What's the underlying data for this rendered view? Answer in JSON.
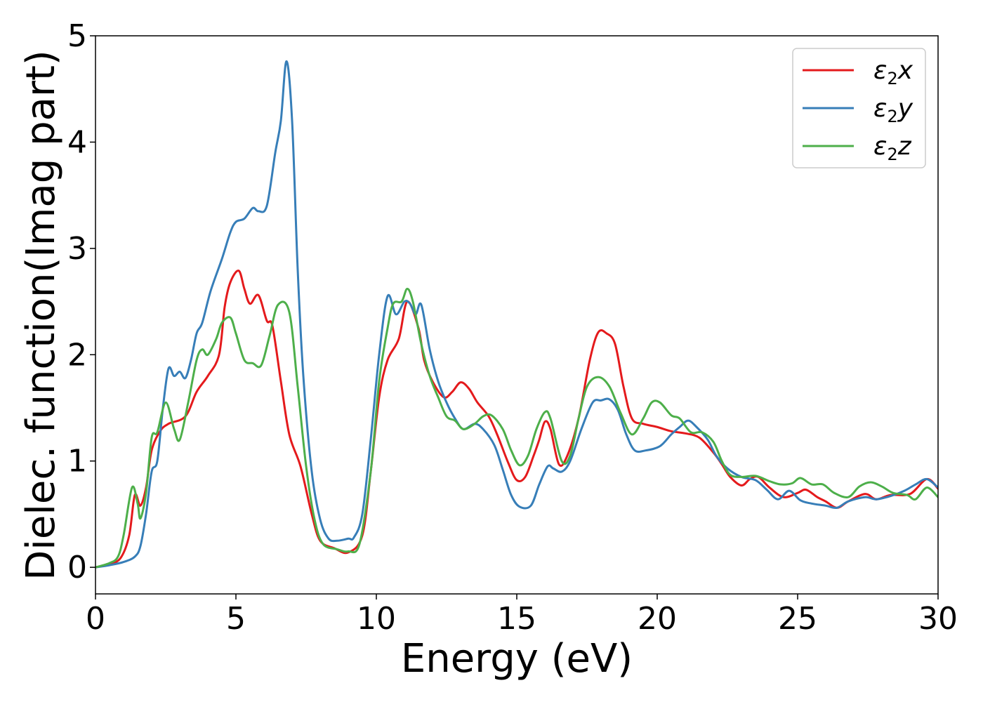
{
  "chart_data": {
    "type": "line",
    "xlabel": "Energy (eV)",
    "ylabel": "Dielec. function(Imag part)",
    "xlim": [
      0,
      30
    ],
    "ylim": [
      -0.25,
      5.0
    ],
    "xticks": [
      "0",
      "5",
      "10",
      "15",
      "20",
      "25",
      "30"
    ],
    "yticks": [
      "0",
      "1",
      "2",
      "3",
      "4",
      "5"
    ],
    "grid": false,
    "legend_position": "top-right",
    "series": [
      {
        "name": "ε2x",
        "legend": {
          "base": "ε",
          "sub": "2",
          "var": "x"
        },
        "color": "#e41a1c",
        "points": [
          [
            0,
            0
          ],
          [
            0.5,
            0.03
          ],
          [
            0.9,
            0.09
          ],
          [
            1.2,
            0.3
          ],
          [
            1.4,
            0.68
          ],
          [
            1.6,
            0.58
          ],
          [
            1.8,
            0.75
          ],
          [
            2.0,
            1.1
          ],
          [
            2.3,
            1.28
          ],
          [
            2.6,
            1.35
          ],
          [
            3.2,
            1.42
          ],
          [
            3.6,
            1.65
          ],
          [
            4.0,
            1.8
          ],
          [
            4.4,
            2.0
          ],
          [
            4.6,
            2.45
          ],
          [
            4.8,
            2.68
          ],
          [
            5.1,
            2.79
          ],
          [
            5.3,
            2.62
          ],
          [
            5.5,
            2.48
          ],
          [
            5.8,
            2.56
          ],
          [
            6.1,
            2.32
          ],
          [
            6.3,
            2.27
          ],
          [
            6.6,
            1.75
          ],
          [
            6.9,
            1.25
          ],
          [
            7.3,
            0.95
          ],
          [
            7.7,
            0.5
          ],
          [
            8.0,
            0.25
          ],
          [
            8.5,
            0.18
          ],
          [
            9.0,
            0.14
          ],
          [
            9.5,
            0.3
          ],
          [
            9.8,
            0.9
          ],
          [
            10.1,
            1.6
          ],
          [
            10.4,
            1.95
          ],
          [
            10.8,
            2.15
          ],
          [
            11.1,
            2.5
          ],
          [
            11.5,
            2.25
          ],
          [
            11.7,
            1.95
          ],
          [
            12.0,
            1.75
          ],
          [
            12.4,
            1.6
          ],
          [
            12.7,
            1.65
          ],
          [
            13.0,
            1.74
          ],
          [
            13.3,
            1.68
          ],
          [
            13.6,
            1.55
          ],
          [
            14.0,
            1.42
          ],
          [
            14.3,
            1.25
          ],
          [
            14.7,
            0.98
          ],
          [
            15.0,
            0.82
          ],
          [
            15.3,
            0.85
          ],
          [
            15.6,
            1.05
          ],
          [
            15.8,
            1.2
          ],
          [
            16.0,
            1.37
          ],
          [
            16.2,
            1.3
          ],
          [
            16.5,
            0.97
          ],
          [
            16.8,
            1.05
          ],
          [
            17.2,
            1.4
          ],
          [
            17.6,
            1.95
          ],
          [
            17.9,
            2.21
          ],
          [
            18.2,
            2.2
          ],
          [
            18.5,
            2.1
          ],
          [
            18.8,
            1.7
          ],
          [
            19.1,
            1.4
          ],
          [
            19.5,
            1.35
          ],
          [
            20.0,
            1.32
          ],
          [
            20.5,
            1.28
          ],
          [
            21.0,
            1.26
          ],
          [
            21.5,
            1.22
          ],
          [
            22.0,
            1.08
          ],
          [
            22.3,
            0.97
          ],
          [
            22.6,
            0.85
          ],
          [
            23.0,
            0.77
          ],
          [
            23.3,
            0.83
          ],
          [
            23.6,
            0.85
          ],
          [
            24.0,
            0.75
          ],
          [
            24.5,
            0.66
          ],
          [
            25.0,
            0.7
          ],
          [
            25.3,
            0.73
          ],
          [
            25.7,
            0.66
          ],
          [
            26.0,
            0.62
          ],
          [
            26.4,
            0.56
          ],
          [
            26.8,
            0.62
          ],
          [
            27.4,
            0.69
          ],
          [
            27.8,
            0.64
          ],
          [
            28.3,
            0.68
          ],
          [
            29.0,
            0.69
          ],
          [
            29.6,
            0.83
          ],
          [
            30.0,
            0.74
          ]
        ]
      },
      {
        "name": "ε2y",
        "legend": {
          "base": "ε",
          "sub": "2",
          "var": "y"
        },
        "color": "#377eb8",
        "points": [
          [
            0,
            0
          ],
          [
            0.5,
            0.02
          ],
          [
            1.0,
            0.05
          ],
          [
            1.4,
            0.1
          ],
          [
            1.6,
            0.2
          ],
          [
            1.8,
            0.5
          ],
          [
            2.0,
            0.9
          ],
          [
            2.2,
            1.0
          ],
          [
            2.4,
            1.5
          ],
          [
            2.6,
            1.87
          ],
          [
            2.8,
            1.8
          ],
          [
            3.0,
            1.84
          ],
          [
            3.2,
            1.78
          ],
          [
            3.4,
            1.95
          ],
          [
            3.6,
            2.2
          ],
          [
            3.8,
            2.3
          ],
          [
            4.1,
            2.6
          ],
          [
            4.5,
            2.9
          ],
          [
            4.8,
            3.15
          ],
          [
            5.0,
            3.25
          ],
          [
            5.3,
            3.28
          ],
          [
            5.6,
            3.38
          ],
          [
            5.8,
            3.35
          ],
          [
            6.1,
            3.4
          ],
          [
            6.4,
            3.9
          ],
          [
            6.6,
            4.2
          ],
          [
            6.8,
            4.76
          ],
          [
            7.0,
            4.2
          ],
          [
            7.2,
            2.8
          ],
          [
            7.4,
            1.8
          ],
          [
            7.7,
            0.9
          ],
          [
            8.0,
            0.45
          ],
          [
            8.3,
            0.27
          ],
          [
            8.6,
            0.25
          ],
          [
            9.0,
            0.27
          ],
          [
            9.2,
            0.28
          ],
          [
            9.5,
            0.5
          ],
          [
            9.8,
            1.2
          ],
          [
            10.1,
            2.0
          ],
          [
            10.4,
            2.55
          ],
          [
            10.7,
            2.38
          ],
          [
            11.0,
            2.5
          ],
          [
            11.2,
            2.48
          ],
          [
            11.4,
            2.38
          ],
          [
            11.6,
            2.47
          ],
          [
            11.9,
            2.05
          ],
          [
            12.2,
            1.75
          ],
          [
            12.5,
            1.55
          ],
          [
            12.8,
            1.4
          ],
          [
            13.1,
            1.3
          ],
          [
            13.5,
            1.35
          ],
          [
            13.8,
            1.3
          ],
          [
            14.2,
            1.15
          ],
          [
            14.5,
            0.92
          ],
          [
            14.8,
            0.68
          ],
          [
            15.1,
            0.57
          ],
          [
            15.5,
            0.58
          ],
          [
            15.8,
            0.78
          ],
          [
            16.1,
            0.95
          ],
          [
            16.3,
            0.93
          ],
          [
            16.6,
            0.9
          ],
          [
            16.9,
            1.0
          ],
          [
            17.3,
            1.3
          ],
          [
            17.7,
            1.55
          ],
          [
            18.0,
            1.57
          ],
          [
            18.3,
            1.58
          ],
          [
            18.6,
            1.48
          ],
          [
            18.9,
            1.25
          ],
          [
            19.2,
            1.1
          ],
          [
            19.6,
            1.1
          ],
          [
            20.1,
            1.14
          ],
          [
            20.5,
            1.25
          ],
          [
            20.8,
            1.32
          ],
          [
            21.1,
            1.38
          ],
          [
            21.4,
            1.32
          ],
          [
            21.8,
            1.2
          ],
          [
            22.1,
            1.05
          ],
          [
            22.5,
            0.93
          ],
          [
            23.0,
            0.85
          ],
          [
            23.5,
            0.82
          ],
          [
            23.9,
            0.73
          ],
          [
            24.3,
            0.64
          ],
          [
            24.7,
            0.72
          ],
          [
            25.1,
            0.63
          ],
          [
            25.5,
            0.6
          ],
          [
            26.0,
            0.58
          ],
          [
            26.4,
            0.56
          ],
          [
            26.8,
            0.62
          ],
          [
            27.4,
            0.66
          ],
          [
            27.8,
            0.64
          ],
          [
            28.3,
            0.67
          ],
          [
            28.8,
            0.72
          ],
          [
            29.2,
            0.78
          ],
          [
            29.6,
            0.83
          ],
          [
            30.0,
            0.75
          ]
        ]
      },
      {
        "name": "ε2z",
        "legend": {
          "base": "ε",
          "sub": "2",
          "var": "z"
        },
        "color": "#4daf4a",
        "points": [
          [
            0,
            0
          ],
          [
            0.5,
            0.04
          ],
          [
            0.8,
            0.1
          ],
          [
            1.0,
            0.3
          ],
          [
            1.3,
            0.75
          ],
          [
            1.5,
            0.6
          ],
          [
            1.6,
            0.46
          ],
          [
            1.8,
            0.7
          ],
          [
            2.0,
            1.22
          ],
          [
            2.2,
            1.27
          ],
          [
            2.5,
            1.55
          ],
          [
            2.8,
            1.3
          ],
          [
            3.0,
            1.2
          ],
          [
            3.3,
            1.55
          ],
          [
            3.6,
            1.95
          ],
          [
            3.8,
            2.05
          ],
          [
            4.0,
            2.0
          ],
          [
            4.3,
            2.15
          ],
          [
            4.5,
            2.3
          ],
          [
            4.8,
            2.35
          ],
          [
            5.0,
            2.2
          ],
          [
            5.3,
            1.95
          ],
          [
            5.6,
            1.92
          ],
          [
            5.9,
            1.9
          ],
          [
            6.2,
            2.18
          ],
          [
            6.5,
            2.47
          ],
          [
            6.9,
            2.4
          ],
          [
            7.2,
            1.7
          ],
          [
            7.5,
            0.95
          ],
          [
            7.8,
            0.45
          ],
          [
            8.1,
            0.22
          ],
          [
            8.6,
            0.17
          ],
          [
            9.0,
            0.15
          ],
          [
            9.4,
            0.22
          ],
          [
            9.8,
            0.9
          ],
          [
            10.1,
            1.75
          ],
          [
            10.4,
            2.25
          ],
          [
            10.6,
            2.48
          ],
          [
            10.9,
            2.5
          ],
          [
            11.1,
            2.62
          ],
          [
            11.3,
            2.5
          ],
          [
            11.6,
            2.1
          ],
          [
            11.9,
            1.8
          ],
          [
            12.2,
            1.6
          ],
          [
            12.5,
            1.42
          ],
          [
            12.8,
            1.38
          ],
          [
            13.1,
            1.3
          ],
          [
            13.5,
            1.35
          ],
          [
            13.8,
            1.42
          ],
          [
            14.1,
            1.43
          ],
          [
            14.5,
            1.3
          ],
          [
            14.8,
            1.1
          ],
          [
            15.1,
            0.96
          ],
          [
            15.4,
            1.05
          ],
          [
            15.7,
            1.3
          ],
          [
            16.0,
            1.46
          ],
          [
            16.2,
            1.4
          ],
          [
            16.6,
            1.0
          ],
          [
            16.9,
            1.05
          ],
          [
            17.2,
            1.4
          ],
          [
            17.5,
            1.7
          ],
          [
            17.9,
            1.79
          ],
          [
            18.3,
            1.7
          ],
          [
            18.7,
            1.45
          ],
          [
            19.1,
            1.25
          ],
          [
            19.5,
            1.4
          ],
          [
            19.8,
            1.55
          ],
          [
            20.1,
            1.55
          ],
          [
            20.5,
            1.43
          ],
          [
            20.8,
            1.4
          ],
          [
            21.2,
            1.27
          ],
          [
            21.6,
            1.27
          ],
          [
            22.0,
            1.18
          ],
          [
            22.3,
            1.0
          ],
          [
            22.6,
            0.87
          ],
          [
            23.0,
            0.85
          ],
          [
            23.5,
            0.86
          ],
          [
            24.0,
            0.81
          ],
          [
            24.4,
            0.78
          ],
          [
            24.8,
            0.79
          ],
          [
            25.1,
            0.84
          ],
          [
            25.5,
            0.78
          ],
          [
            25.9,
            0.78
          ],
          [
            26.3,
            0.7
          ],
          [
            26.8,
            0.66
          ],
          [
            27.2,
            0.76
          ],
          [
            27.6,
            0.8
          ],
          [
            28.0,
            0.76
          ],
          [
            28.4,
            0.7
          ],
          [
            28.9,
            0.68
          ],
          [
            29.2,
            0.64
          ],
          [
            29.6,
            0.75
          ],
          [
            30.0,
            0.66
          ]
        ]
      }
    ]
  }
}
